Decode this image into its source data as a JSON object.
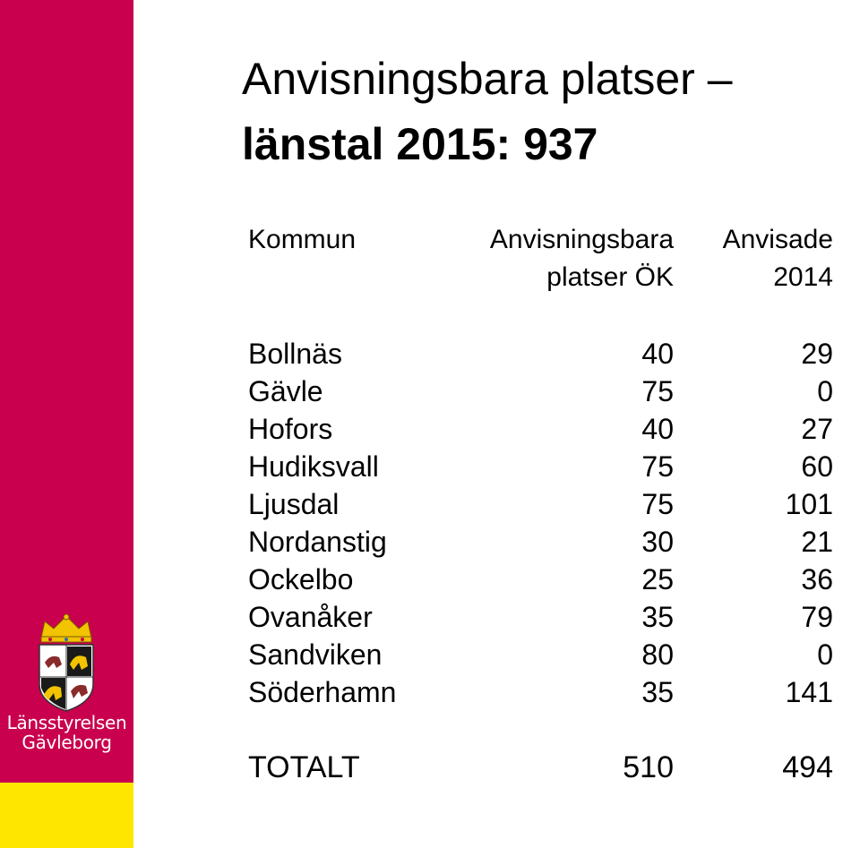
{
  "title_line1": "Anvisningsbara platser –",
  "title_line2": "länstal 2015: 937",
  "logo": {
    "line1": "Länsstyrelsen",
    "line2": "Gävleborg",
    "icon": "coat-of-arms-icon"
  },
  "colors": {
    "sidebar": "#c9004e",
    "sidebar_bottom": "#ffe600"
  },
  "table": {
    "headers": {
      "col1": "Kommun",
      "col2_line1": "Anvisningsbara",
      "col2_line2": "platser ÖK",
      "col3_line1": "Anvisade",
      "col3_line2": "2014"
    },
    "rows": [
      {
        "kommun": "Bollnäs",
        "platser": "40",
        "anvisade": "29"
      },
      {
        "kommun": "Gävle",
        "platser": "75",
        "anvisade": "0"
      },
      {
        "kommun": "Hofors",
        "platser": "40",
        "anvisade": "27"
      },
      {
        "kommun": "Hudiksvall",
        "platser": "75",
        "anvisade": "60"
      },
      {
        "kommun": "Ljusdal",
        "platser": "75",
        "anvisade": "101"
      },
      {
        "kommun": "Nordanstig",
        "platser": "30",
        "anvisade": "21"
      },
      {
        "kommun": "Ockelbo",
        "platser": "25",
        "anvisade": "36"
      },
      {
        "kommun": "Ovanåker",
        "platser": "35",
        "anvisade": "79"
      },
      {
        "kommun": "Sandviken",
        "platser": "80",
        "anvisade": "0"
      },
      {
        "kommun": "Söderhamn",
        "platser": "35",
        "anvisade": "141"
      }
    ],
    "total": {
      "label": "TOTALT",
      "platser": "510",
      "anvisade": "494"
    }
  }
}
